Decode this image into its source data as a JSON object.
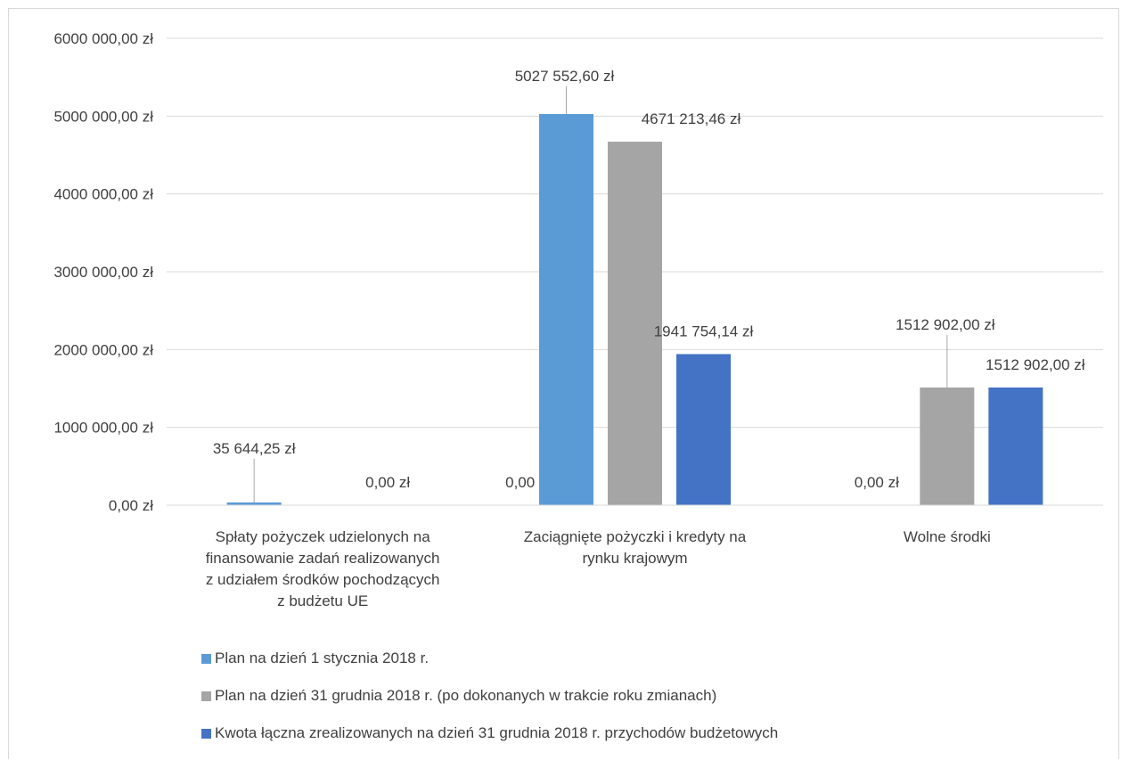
{
  "chart_data": {
    "type": "bar",
    "categories": [
      [
        "Spłaty pożyczek udzielonych na",
        "finansowanie zadań realizowanych",
        "z udziałem środków pochodzących",
        "z budżetu UE"
      ],
      [
        "Zaciągnięte pożyczki i kredyty na",
        "rynku krajowym"
      ],
      [
        "Wolne środki"
      ]
    ],
    "series": [
      {
        "name": "Plan na dzień 1 stycznia 2018 r.",
        "color": "#5b9bd5",
        "values": [
          35644.25,
          5027552.6,
          0
        ],
        "labels": [
          "35 644,25 zł",
          "5027 552,60 zł",
          "0,00 zł"
        ]
      },
      {
        "name": "Plan na dzień 31 grudnia 2018 r. (po dokonanych w trakcie roku zmianach)",
        "color": "#a5a5a5",
        "values": [
          0,
          4671213.46,
          1512902.0
        ],
        "labels": [
          "0,00 zł",
          "4671 213,46 zł",
          "1512 902,00 zł"
        ]
      },
      {
        "name": "Kwota łączna zrealizowanych na dzień 31 grudnia 2018 r. przychodów budżetowych",
        "color": "#4472c4",
        "values": [
          0,
          1941754.14,
          1512902.0
        ],
        "labels": [
          "0,00 zł",
          "1941 754,14 zł",
          "1512 902,00 zł"
        ]
      }
    ],
    "ylim": [
      0,
      6000000
    ],
    "yticks": [
      0,
      1000000,
      2000000,
      3000000,
      4000000,
      5000000,
      6000000
    ],
    "ytick_labels": [
      "0,00 zł",
      "1000 000,00 zł",
      "2000 000,00 zł",
      "3000 000,00 zł",
      "4000 000,00 zł",
      "5000 000,00 zł",
      "6000 000,00 zł"
    ],
    "grid": true,
    "legend_position": "bottom",
    "title": "",
    "xlabel": "",
    "ylabel": ""
  }
}
